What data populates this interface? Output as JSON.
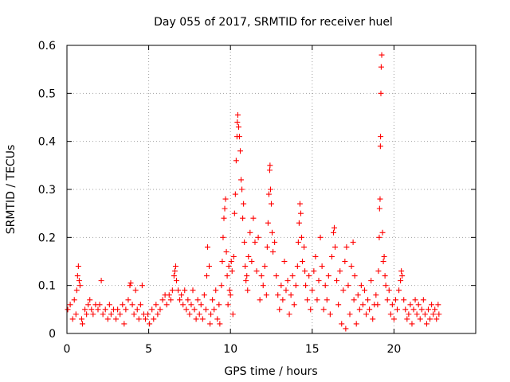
{
  "chart_data": {
    "type": "scatter",
    "title": "Day 055 of 2017, SRMTID for receiver huel",
    "xlabel": "GPS time / hours",
    "ylabel": "SRMTID / TECUs",
    "xlim": [
      0,
      25
    ],
    "ylim": [
      0,
      0.6
    ],
    "x_ticks": [
      0,
      5,
      10,
      15,
      20
    ],
    "x_tick_labels": [
      "0",
      "5",
      "10",
      "15",
      "20"
    ],
    "y_ticks": [
      0,
      0.1,
      0.2,
      0.3,
      0.4,
      0.5,
      0.6
    ],
    "y_tick_labels": [
      "0",
      "0.1",
      "0.2",
      "0.3",
      "0.4",
      "0.5",
      "0.6"
    ],
    "grid": true,
    "marker": "+",
    "series": [
      {
        "name": "SRMTID",
        "color": "#ff0000",
        "points": [
          [
            0.05,
            0.05
          ],
          [
            0.2,
            0.06
          ],
          [
            0.35,
            0.03
          ],
          [
            0.45,
            0.07
          ],
          [
            0.55,
            0.04
          ],
          [
            0.6,
            0.09
          ],
          [
            0.65,
            0.12
          ],
          [
            0.7,
            0.14
          ],
          [
            0.75,
            0.11
          ],
          [
            0.8,
            0.1
          ],
          [
            0.9,
            0.03
          ],
          [
            0.95,
            0.02
          ],
          [
            1.1,
            0.05
          ],
          [
            1.2,
            0.04
          ],
          [
            1.3,
            0.06
          ],
          [
            1.4,
            0.07
          ],
          [
            1.5,
            0.05
          ],
          [
            1.6,
            0.04
          ],
          [
            1.75,
            0.06
          ],
          [
            1.9,
            0.05
          ],
          [
            2.0,
            0.06
          ],
          [
            2.1,
            0.11
          ],
          [
            2.2,
            0.04
          ],
          [
            2.35,
            0.05
          ],
          [
            2.5,
            0.03
          ],
          [
            2.6,
            0.06
          ],
          [
            2.7,
            0.04
          ],
          [
            2.85,
            0.05
          ],
          [
            3.0,
            0.03
          ],
          [
            3.1,
            0.05
          ],
          [
            3.25,
            0.04
          ],
          [
            3.4,
            0.06
          ],
          [
            3.5,
            0.02
          ],
          [
            3.6,
            0.05
          ],
          [
            3.75,
            0.07
          ],
          [
            3.85,
            0.1
          ],
          [
            3.9,
            0.105
          ],
          [
            4.0,
            0.06
          ],
          [
            4.1,
            0.04
          ],
          [
            4.2,
            0.09
          ],
          [
            4.3,
            0.05
          ],
          [
            4.4,
            0.03
          ],
          [
            4.5,
            0.06
          ],
          [
            4.6,
            0.1
          ],
          [
            4.7,
            0.04
          ],
          [
            4.8,
            0.03
          ],
          [
            4.95,
            0.04
          ],
          [
            5.05,
            0.02
          ],
          [
            5.2,
            0.05
          ],
          [
            5.3,
            0.03
          ],
          [
            5.45,
            0.06
          ],
          [
            5.55,
            0.04
          ],
          [
            5.7,
            0.05
          ],
          [
            5.85,
            0.07
          ],
          [
            6.0,
            0.08
          ],
          [
            6.1,
            0.06
          ],
          [
            6.25,
            0.08
          ],
          [
            6.35,
            0.07
          ],
          [
            6.45,
            0.09
          ],
          [
            6.55,
            0.12
          ],
          [
            6.6,
            0.13
          ],
          [
            6.65,
            0.14
          ],
          [
            6.7,
            0.11
          ],
          [
            6.8,
            0.09
          ],
          [
            6.9,
            0.07
          ],
          [
            7.0,
            0.08
          ],
          [
            7.1,
            0.06
          ],
          [
            7.2,
            0.09
          ],
          [
            7.3,
            0.05
          ],
          [
            7.4,
            0.07
          ],
          [
            7.5,
            0.04
          ],
          [
            7.6,
            0.06
          ],
          [
            7.7,
            0.09
          ],
          [
            7.8,
            0.05
          ],
          [
            7.9,
            0.03
          ],
          [
            8.0,
            0.07
          ],
          [
            8.1,
            0.04
          ],
          [
            8.2,
            0.06
          ],
          [
            8.3,
            0.03
          ],
          [
            8.4,
            0.08
          ],
          [
            8.5,
            0.05
          ],
          [
            8.55,
            0.12
          ],
          [
            8.6,
            0.18
          ],
          [
            8.7,
            0.14
          ],
          [
            8.75,
            0.02
          ],
          [
            8.8,
            0.04
          ],
          [
            8.9,
            0.07
          ],
          [
            9.0,
            0.05
          ],
          [
            9.1,
            0.09
          ],
          [
            9.2,
            0.03
          ],
          [
            9.3,
            0.06
          ],
          [
            9.35,
            0.02
          ],
          [
            9.45,
            0.1
          ],
          [
            9.5,
            0.15
          ],
          [
            9.55,
            0.2
          ],
          [
            9.6,
            0.24
          ],
          [
            9.65,
            0.26
          ],
          [
            9.7,
            0.28
          ],
          [
            9.75,
            0.17
          ],
          [
            9.8,
            0.12
          ],
          [
            9.85,
            0.06
          ],
          [
            9.9,
            0.14
          ],
          [
            9.95,
            0.09
          ],
          [
            10.0,
            0.08
          ],
          [
            10.05,
            0.15
          ],
          [
            10.1,
            0.13
          ],
          [
            10.15,
            0.04
          ],
          [
            10.2,
            0.16
          ],
          [
            10.25,
            0.25
          ],
          [
            10.3,
            0.29
          ],
          [
            10.35,
            0.36
          ],
          [
            10.4,
            0.41
          ],
          [
            10.42,
            0.44
          ],
          [
            10.45,
            0.455
          ],
          [
            10.5,
            0.43
          ],
          [
            10.55,
            0.41
          ],
          [
            10.6,
            0.38
          ],
          [
            10.65,
            0.32
          ],
          [
            10.7,
            0.3
          ],
          [
            10.75,
            0.24
          ],
          [
            10.8,
            0.27
          ],
          [
            10.85,
            0.19
          ],
          [
            10.9,
            0.14
          ],
          [
            10.95,
            0.11
          ],
          [
            11.0,
            0.12
          ],
          [
            11.05,
            0.09
          ],
          [
            11.1,
            0.16
          ],
          [
            11.2,
            0.21
          ],
          [
            11.3,
            0.15
          ],
          [
            11.4,
            0.24
          ],
          [
            11.5,
            0.19
          ],
          [
            11.6,
            0.13
          ],
          [
            11.7,
            0.2
          ],
          [
            11.8,
            0.07
          ],
          [
            11.9,
            0.12
          ],
          [
            12.0,
            0.1
          ],
          [
            12.1,
            0.14
          ],
          [
            12.2,
            0.08
          ],
          [
            12.25,
            0.18
          ],
          [
            12.3,
            0.23
          ],
          [
            12.35,
            0.29
          ],
          [
            12.4,
            0.34
          ],
          [
            12.42,
            0.35
          ],
          [
            12.45,
            0.3
          ],
          [
            12.5,
            0.27
          ],
          [
            12.55,
            0.21
          ],
          [
            12.6,
            0.17
          ],
          [
            12.7,
            0.19
          ],
          [
            12.8,
            0.12
          ],
          [
            12.9,
            0.08
          ],
          [
            13.0,
            0.05
          ],
          [
            13.1,
            0.1
          ],
          [
            13.2,
            0.07
          ],
          [
            13.3,
            0.15
          ],
          [
            13.4,
            0.09
          ],
          [
            13.5,
            0.11
          ],
          [
            13.6,
            0.04
          ],
          [
            13.7,
            0.08
          ],
          [
            13.8,
            0.12
          ],
          [
            13.9,
            0.06
          ],
          [
            14.0,
            0.1
          ],
          [
            14.1,
            0.14
          ],
          [
            14.15,
            0.19
          ],
          [
            14.2,
            0.23
          ],
          [
            14.25,
            0.27
          ],
          [
            14.3,
            0.25
          ],
          [
            14.35,
            0.2
          ],
          [
            14.4,
            0.15
          ],
          [
            14.5,
            0.18
          ],
          [
            14.55,
            0.13
          ],
          [
            14.6,
            0.1
          ],
          [
            14.7,
            0.07
          ],
          [
            14.8,
            0.12
          ],
          [
            14.9,
            0.05
          ],
          [
            15.0,
            0.09
          ],
          [
            15.1,
            0.13
          ],
          [
            15.2,
            0.16
          ],
          [
            15.3,
            0.07
          ],
          [
            15.4,
            0.11
          ],
          [
            15.5,
            0.2
          ],
          [
            15.6,
            0.14
          ],
          [
            15.7,
            0.05
          ],
          [
            15.8,
            0.1
          ],
          [
            15.9,
            0.07
          ],
          [
            16.0,
            0.12
          ],
          [
            16.1,
            0.04
          ],
          [
            16.2,
            0.16
          ],
          [
            16.3,
            0.21
          ],
          [
            16.35,
            0.22
          ],
          [
            16.4,
            0.18
          ],
          [
            16.5,
            0.11
          ],
          [
            16.6,
            0.06
          ],
          [
            16.7,
            0.13
          ],
          [
            16.8,
            0.02
          ],
          [
            16.9,
            0.09
          ],
          [
            17.0,
            0.15
          ],
          [
            17.05,
            0.01
          ],
          [
            17.1,
            0.18
          ],
          [
            17.2,
            0.1
          ],
          [
            17.3,
            0.04
          ],
          [
            17.4,
            0.14
          ],
          [
            17.5,
            0.19
          ],
          [
            17.55,
            0.07
          ],
          [
            17.6,
            0.12
          ],
          [
            17.7,
            0.02
          ],
          [
            17.8,
            0.08
          ],
          [
            17.9,
            0.05
          ],
          [
            18.0,
            0.1
          ],
          [
            18.1,
            0.06
          ],
          [
            18.2,
            0.09
          ],
          [
            18.3,
            0.04
          ],
          [
            18.4,
            0.07
          ],
          [
            18.5,
            0.05
          ],
          [
            18.6,
            0.11
          ],
          [
            18.7,
            0.03
          ],
          [
            18.8,
            0.06
          ],
          [
            18.9,
            0.08
          ],
          [
            19.0,
            0.06
          ],
          [
            19.05,
            0.13
          ],
          [
            19.1,
            0.2
          ],
          [
            19.12,
            0.26
          ],
          [
            19.15,
            0.28
          ],
          [
            19.17,
            0.39
          ],
          [
            19.18,
            0.41
          ],
          [
            19.2,
            0.5
          ],
          [
            19.22,
            0.555
          ],
          [
            19.25,
            0.58
          ],
          [
            19.3,
            0.21
          ],
          [
            19.35,
            0.15
          ],
          [
            19.4,
            0.16
          ],
          [
            19.45,
            0.12
          ],
          [
            19.5,
            0.1
          ],
          [
            19.6,
            0.07
          ],
          [
            19.7,
            0.09
          ],
          [
            19.8,
            0.04
          ],
          [
            19.9,
            0.06
          ],
          [
            20.0,
            0.03
          ],
          [
            20.1,
            0.07
          ],
          [
            20.2,
            0.05
          ],
          [
            20.3,
            0.09
          ],
          [
            20.4,
            0.11
          ],
          [
            20.45,
            0.13
          ],
          [
            20.5,
            0.12
          ],
          [
            20.6,
            0.07
          ],
          [
            20.7,
            0.05
          ],
          [
            20.8,
            0.03
          ],
          [
            20.9,
            0.04
          ],
          [
            21.0,
            0.06
          ],
          [
            21.1,
            0.02
          ],
          [
            21.2,
            0.05
          ],
          [
            21.3,
            0.07
          ],
          [
            21.4,
            0.04
          ],
          [
            21.5,
            0.06
          ],
          [
            21.6,
            0.03
          ],
          [
            21.7,
            0.05
          ],
          [
            21.8,
            0.07
          ],
          [
            21.9,
            0.04
          ],
          [
            22.0,
            0.02
          ],
          [
            22.1,
            0.05
          ],
          [
            22.2,
            0.03
          ],
          [
            22.3,
            0.06
          ],
          [
            22.4,
            0.04
          ],
          [
            22.5,
            0.05
          ],
          [
            22.6,
            0.03
          ],
          [
            22.7,
            0.06
          ],
          [
            22.75,
            0.04
          ]
        ]
      }
    ]
  }
}
